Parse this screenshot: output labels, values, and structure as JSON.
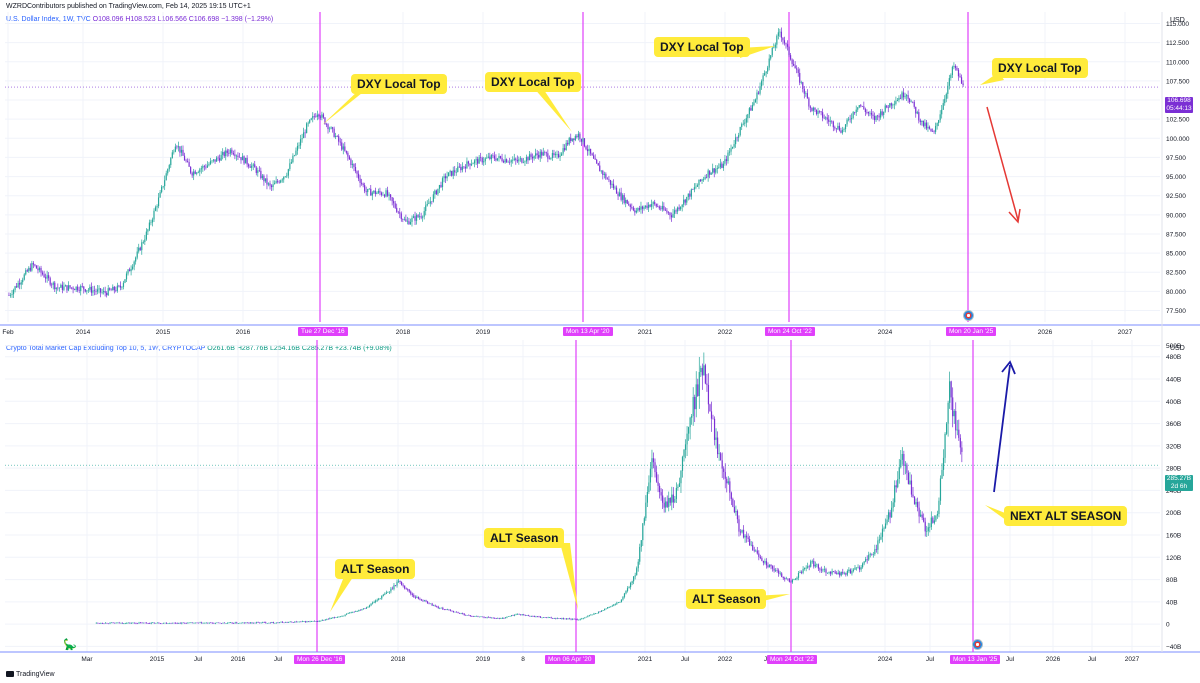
{
  "header": {
    "publisher": "WZRDContributors published on TradingView.com, Feb 14, 2025 19:15 UTC+1"
  },
  "footer": {
    "brand": "TradingView"
  },
  "colors": {
    "up": "#26a69a",
    "down": "#7b2fd4",
    "marker": "#e040fb",
    "callout": "#ffeb3b",
    "red_arrow": "#e53935",
    "blue_arrow": "#1a1aa8"
  },
  "top_panel": {
    "legend_name": "U.S. Dollar Index, 1W, TVC",
    "legend_values": "O108.096 H108.523 L106.566 C106.698 −1.398 (−1.29%)",
    "currency": "USD",
    "price_label": "106.698",
    "countdown": "05:44:13",
    "callouts": [
      "DXY Local Top",
      "DXY Local Top",
      "DXY Local Top",
      "DXY Local Top"
    ],
    "date_markers": [
      "Tue 27 Dec '16",
      "Mon 13 Apr '20",
      "Mon 24 Oct '22",
      "Mon 20 Jan '25"
    ],
    "x_ticks": [
      "Feb",
      "2014",
      "2015",
      "2016",
      "2018",
      "2019",
      "2021",
      "2022",
      "2024",
      "2026",
      "2027"
    ]
  },
  "bottom_panel": {
    "legend_name": "Crypto Total Market Cap Excluding Top 10, 5, 1W, CRYPTOCAP",
    "legend_values": "O261.6B H287.76B L254.16B C285.27B +23.74B (+9.08%)",
    "currency": "USD",
    "price_label": "285.27B",
    "countdown": "2d 6h",
    "callouts": [
      "ALT Season",
      "ALT Season",
      "ALT Season",
      "NEXT ALT SEASON"
    ],
    "date_markers": [
      "Mon 26 Dec '16",
      "Mon 06 Apr '20",
      "Mon 24 Oct '22",
      "Mon 13 Jan '25"
    ],
    "x_ticks": [
      "Mar",
      "2015",
      "Jul",
      "2016",
      "Jul",
      "2018",
      "2019",
      "8",
      "2021",
      "Jul",
      "2022",
      "Jul",
      "2024",
      "Jul",
      "Jul",
      "2026",
      "Jul",
      "2027"
    ]
  },
  "chart_data": [
    {
      "type": "line",
      "title": "U.S. Dollar Index, 1W, TVC",
      "ylabel": "USD",
      "ylim": [
        76,
        117
      ],
      "y_ticks": [
        "115.000",
        "112.500",
        "110.000",
        "107.500",
        "105.000",
        "102.500",
        "100.000",
        "97.500",
        "95.000",
        "92.500",
        "90.000",
        "87.500",
        "85.000",
        "82.500",
        "80.000",
        "77.500"
      ],
      "y_tick_values": [
        115,
        112.5,
        110,
        107.5,
        105,
        102.5,
        100,
        97.5,
        95,
        92.5,
        90,
        87.5,
        85,
        82.5,
        80,
        77.5
      ],
      "series": [
        {
          "x": [
            2013.1,
            2013.4,
            2013.7,
            2014.0,
            2014.3,
            2014.5,
            2014.7,
            2014.85,
            2015.0,
            2015.2,
            2015.4,
            2015.6,
            2015.9,
            2016.2,
            2016.4,
            2016.6,
            2016.85,
            2016.99,
            2017.2,
            2017.4,
            2017.6,
            2017.85,
            2018.1,
            2018.3,
            2018.6,
            2018.9,
            2019.2,
            2019.5,
            2019.8,
            2020.0,
            2020.18,
            2020.28,
            2020.5,
            2020.8,
            2021.0,
            2021.2,
            2021.45,
            2021.7,
            2021.9,
            2022.1,
            2022.3,
            2022.5,
            2022.72,
            2022.81,
            2022.95,
            2023.2,
            2023.4,
            2023.6,
            2023.8,
            2024.0,
            2024.2,
            2024.4,
            2024.6,
            2024.75,
            2024.85,
            2025.0,
            2025.05,
            2025.12
          ],
          "values": [
            79.5,
            83.5,
            80.5,
            80.5,
            79.8,
            80.5,
            84.5,
            88.0,
            92.5,
            99.5,
            95.5,
            96.5,
            98.5,
            96.0,
            93.5,
            95.5,
            101.5,
            103.5,
            100.5,
            97.0,
            93.0,
            92.8,
            89.0,
            90.0,
            95.0,
            96.8,
            97.5,
            97.0,
            98.0,
            97.5,
            100.0,
            100.5,
            96.5,
            92.5,
            90.5,
            91.5,
            90.0,
            93.0,
            95.5,
            96.5,
            101.0,
            105.0,
            111.5,
            114.0,
            110.5,
            104.0,
            102.5,
            101.0,
            104.5,
            102.5,
            104.5,
            106.0,
            102.0,
            100.5,
            104.0,
            109.5,
            108.5,
            106.698
          ]
        }
      ]
    },
    {
      "type": "line",
      "title": "Crypto Total Market Cap Excluding Top 10, 5, 1W, CRYPTOCAP",
      "ylabel": "USD",
      "ylim": [
        -50,
        510
      ],
      "y_ticks": [
        "500B",
        "480B",
        "440B",
        "400B",
        "360B",
        "320B",
        "280B",
        "240B",
        "200B",
        "160B",
        "120B",
        "80B",
        "40B",
        "0",
        "−40B"
      ],
      "y_tick_values": [
        500,
        480,
        440,
        400,
        360,
        320,
        280,
        240,
        200,
        160,
        120,
        80,
        40,
        0,
        -40
      ],
      "series": [
        {
          "x": [
            2014.2,
            2015.0,
            2015.5,
            2016.0,
            2016.5,
            2016.99,
            2017.3,
            2017.6,
            2017.9,
            2018.0,
            2018.2,
            2018.5,
            2018.9,
            2019.3,
            2019.5,
            2019.8,
            2020.1,
            2020.27,
            2020.5,
            2020.8,
            2021.0,
            2021.2,
            2021.35,
            2021.5,
            2021.7,
            2021.85,
            2022.0,
            2022.15,
            2022.3,
            2022.5,
            2022.7,
            2022.81,
            2022.95,
            2023.2,
            2023.4,
            2023.6,
            2023.8,
            2024.0,
            2024.2,
            2024.35,
            2024.5,
            2024.65,
            2024.8,
            2024.95,
            2025.02,
            2025.12
          ],
          "values": [
            2,
            2,
            2,
            2,
            3,
            5,
            15,
            30,
            60,
            78,
            50,
            30,
            15,
            10,
            18,
            12,
            10,
            8,
            20,
            40,
            90,
            290,
            210,
            230,
            380,
            470,
            330,
            260,
            170,
            130,
            100,
            90,
            75,
            110,
            95,
            90,
            100,
            130,
            200,
            300,
            220,
            170,
            200,
            420,
            360,
            285.27
          ]
        }
      ]
    }
  ]
}
